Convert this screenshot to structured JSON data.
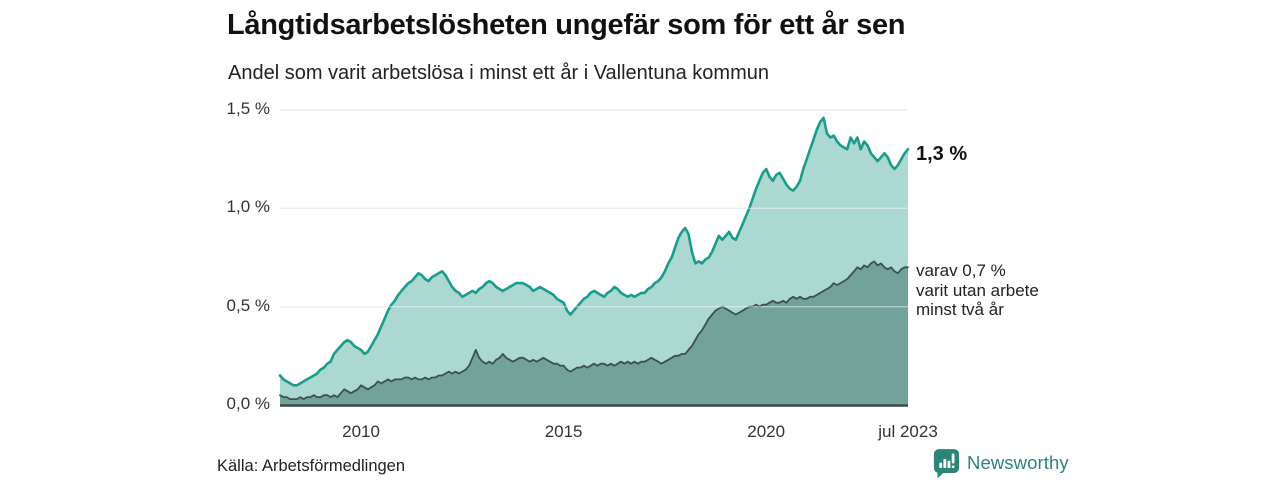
{
  "chart_data": {
    "type": "area",
    "title": "Långtidsarbetslösheten ungefär som för ett år sen",
    "subtitle": "Andel som varit arbetslösa i minst ett år i Vallentuna kommun",
    "unit": "%",
    "frequency": "monthly",
    "x_start": "2008-01",
    "x_end": "2023-07",
    "ylim": [
      0,
      1.5
    ],
    "grid": true,
    "y_tick_values": [
      0,
      0.5,
      1.0,
      1.5
    ],
    "y_ticks": [
      "0,0 %",
      "0,5 %",
      "1,0 %",
      "1,5 %"
    ],
    "x_ticks": [
      "2010",
      "2015",
      "2020",
      "jul 2023"
    ],
    "x_tick_indices": [
      24,
      84,
      144,
      186
    ],
    "gridline_color": "#e1e1e1",
    "gridline_overlay_color": "rgba(255,255,255,0.45)",
    "baseline_color": "#3a4a48",
    "series": [
      {
        "name": "Andel arbetslösa minst ett år",
        "end_label": "1,3 %",
        "end_value": 1.3,
        "line_color": "#1a9c8c",
        "fill_color": "#abd8d1",
        "values": [
          0.15,
          0.13,
          0.12,
          0.11,
          0.1,
          0.1,
          0.11,
          0.12,
          0.13,
          0.14,
          0.15,
          0.16,
          0.18,
          0.19,
          0.21,
          0.22,
          0.26,
          0.28,
          0.3,
          0.32,
          0.33,
          0.32,
          0.3,
          0.29,
          0.28,
          0.26,
          0.27,
          0.3,
          0.33,
          0.36,
          0.4,
          0.44,
          0.48,
          0.51,
          0.53,
          0.56,
          0.58,
          0.6,
          0.62,
          0.63,
          0.65,
          0.67,
          0.66,
          0.64,
          0.63,
          0.65,
          0.66,
          0.67,
          0.68,
          0.66,
          0.63,
          0.6,
          0.58,
          0.57,
          0.55,
          0.56,
          0.57,
          0.58,
          0.57,
          0.59,
          0.6,
          0.62,
          0.63,
          0.62,
          0.6,
          0.59,
          0.58,
          0.59,
          0.6,
          0.61,
          0.62,
          0.62,
          0.62,
          0.61,
          0.6,
          0.58,
          0.59,
          0.6,
          0.59,
          0.58,
          0.57,
          0.56,
          0.54,
          0.53,
          0.52,
          0.48,
          0.46,
          0.48,
          0.5,
          0.52,
          0.54,
          0.55,
          0.57,
          0.58,
          0.57,
          0.56,
          0.55,
          0.57,
          0.58,
          0.6,
          0.59,
          0.57,
          0.56,
          0.55,
          0.56,
          0.55,
          0.56,
          0.57,
          0.57,
          0.59,
          0.6,
          0.62,
          0.63,
          0.65,
          0.68,
          0.72,
          0.75,
          0.8,
          0.85,
          0.88,
          0.9,
          0.87,
          0.78,
          0.72,
          0.73,
          0.72,
          0.74,
          0.75,
          0.78,
          0.82,
          0.86,
          0.84,
          0.86,
          0.88,
          0.85,
          0.84,
          0.88,
          0.92,
          0.96,
          1.0,
          1.05,
          1.1,
          1.14,
          1.18,
          1.2,
          1.16,
          1.14,
          1.17,
          1.18,
          1.15,
          1.12,
          1.1,
          1.09,
          1.11,
          1.14,
          1.2,
          1.25,
          1.3,
          1.35,
          1.4,
          1.44,
          1.46,
          1.38,
          1.36,
          1.37,
          1.34,
          1.32,
          1.31,
          1.3,
          1.36,
          1.33,
          1.36,
          1.3,
          1.34,
          1.32,
          1.28,
          1.26,
          1.24,
          1.26,
          1.28,
          1.26,
          1.22,
          1.2,
          1.22,
          1.25,
          1.28,
          1.3
        ]
      },
      {
        "name": "varav utan arbete minst två år",
        "end_label": "varav 0,7 %\nvarit utan arbete\nminst två år",
        "end_value": 0.7,
        "line_color": "#3d504e",
        "fill_color": "#73a29a",
        "values": [
          0.05,
          0.04,
          0.04,
          0.03,
          0.03,
          0.03,
          0.04,
          0.03,
          0.04,
          0.04,
          0.05,
          0.04,
          0.04,
          0.05,
          0.05,
          0.04,
          0.05,
          0.04,
          0.06,
          0.08,
          0.07,
          0.06,
          0.07,
          0.08,
          0.1,
          0.09,
          0.08,
          0.09,
          0.1,
          0.12,
          0.11,
          0.12,
          0.13,
          0.12,
          0.13,
          0.13,
          0.13,
          0.14,
          0.14,
          0.13,
          0.14,
          0.13,
          0.13,
          0.14,
          0.13,
          0.14,
          0.14,
          0.15,
          0.15,
          0.16,
          0.17,
          0.16,
          0.17,
          0.16,
          0.17,
          0.18,
          0.2,
          0.24,
          0.28,
          0.24,
          0.22,
          0.21,
          0.22,
          0.21,
          0.23,
          0.24,
          0.26,
          0.24,
          0.23,
          0.22,
          0.23,
          0.24,
          0.24,
          0.23,
          0.22,
          0.23,
          0.22,
          0.23,
          0.24,
          0.23,
          0.22,
          0.21,
          0.21,
          0.2,
          0.2,
          0.18,
          0.17,
          0.18,
          0.19,
          0.19,
          0.2,
          0.19,
          0.2,
          0.21,
          0.2,
          0.21,
          0.21,
          0.2,
          0.21,
          0.2,
          0.21,
          0.22,
          0.21,
          0.22,
          0.21,
          0.22,
          0.21,
          0.22,
          0.22,
          0.23,
          0.24,
          0.23,
          0.22,
          0.21,
          0.22,
          0.23,
          0.24,
          0.25,
          0.25,
          0.26,
          0.26,
          0.28,
          0.3,
          0.33,
          0.36,
          0.38,
          0.41,
          0.44,
          0.46,
          0.48,
          0.49,
          0.5,
          0.49,
          0.48,
          0.47,
          0.46,
          0.47,
          0.48,
          0.49,
          0.5,
          0.5,
          0.51,
          0.5,
          0.51,
          0.51,
          0.52,
          0.53,
          0.52,
          0.52,
          0.53,
          0.52,
          0.54,
          0.55,
          0.54,
          0.55,
          0.54,
          0.54,
          0.55,
          0.55,
          0.56,
          0.57,
          0.58,
          0.59,
          0.6,
          0.62,
          0.61,
          0.62,
          0.63,
          0.64,
          0.66,
          0.68,
          0.7,
          0.69,
          0.71,
          0.7,
          0.72,
          0.73,
          0.71,
          0.72,
          0.7,
          0.69,
          0.7,
          0.68,
          0.67,
          0.69,
          0.7,
          0.7
        ]
      }
    ]
  },
  "source": {
    "label": "Källa: Arbetsförmedlingen"
  },
  "branding": {
    "name": "Newsworthy",
    "icon": "newsworthy-bubble-chart-icon",
    "color": "#2b8578"
  }
}
